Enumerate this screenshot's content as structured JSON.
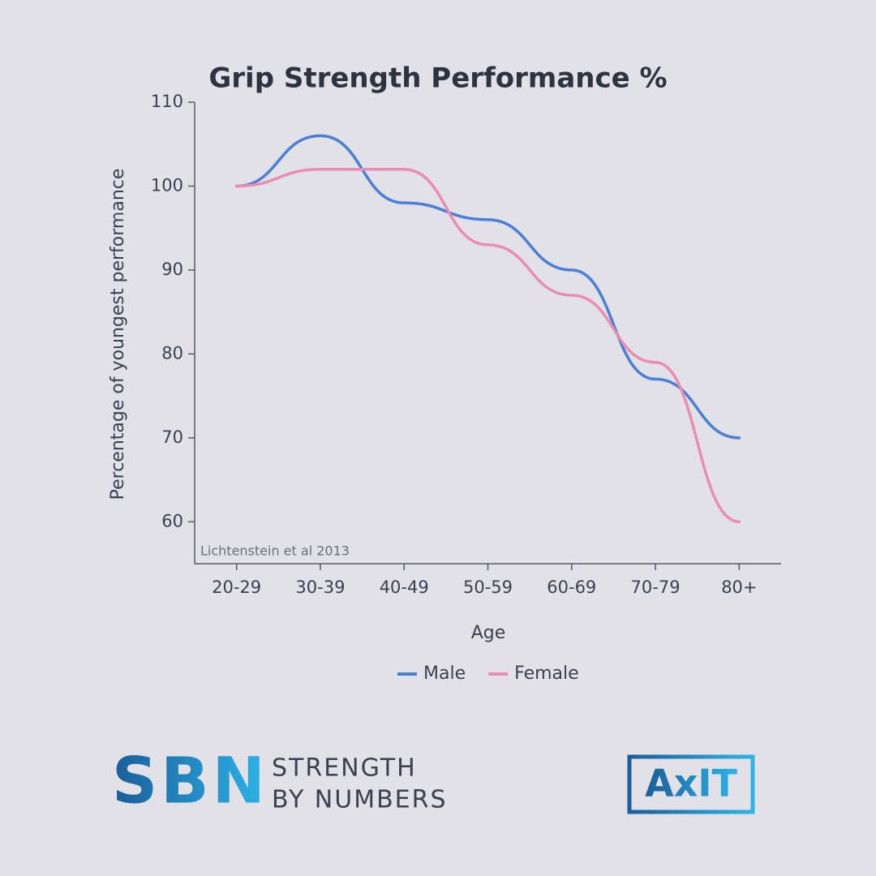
{
  "chart_data": {
    "type": "line",
    "title": "Grip Strength Performance %",
    "x_label": "Age",
    "y_label": "Percentage of youngest performance",
    "annotation": "Lichtenstein et al 2013",
    "categories": [
      "20-29",
      "30-39",
      "40-49",
      "50-59",
      "60-69",
      "70-79",
      "80+"
    ],
    "series": [
      {
        "name": "Male",
        "color": "#4a7fd6",
        "values": [
          100,
          106,
          98,
          96,
          90,
          77,
          70
        ]
      },
      {
        "name": "Female",
        "color": "#ea8db0",
        "values": [
          100,
          102,
          102,
          93,
          87,
          79,
          60
        ]
      }
    ],
    "ylim": [
      55,
      110
    ],
    "yticks": [
      60,
      70,
      80,
      90,
      100,
      110
    ],
    "smooth": true,
    "legend": "bottom"
  },
  "branding": {
    "logo": "SBN",
    "tagline_1": "STRENGTH",
    "tagline_2": "BY NUMBERS",
    "partner": "AxIT"
  }
}
